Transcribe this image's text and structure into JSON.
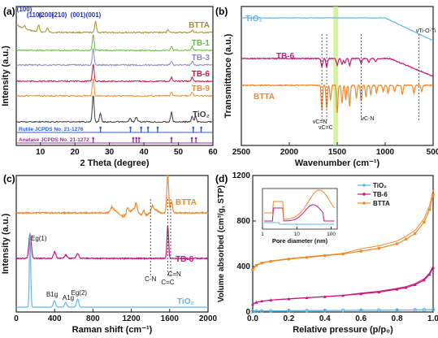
{
  "chart_data": [
    {
      "panel": "(a)",
      "type": "line",
      "xlabel": "2 Theta (degree)",
      "ylabel": "Intensity (a.u.)",
      "xlim": [
        3,
        60
      ],
      "xticks": [
        10,
        20,
        30,
        40,
        50,
        60
      ],
      "yticks": "none",
      "peak_labels": [
        {
          "text": "(100)",
          "x": 5.5
        },
        {
          "text": "(110)",
          "x": 9.0
        },
        {
          "text": "(200)",
          "x": 12.5
        },
        {
          "text": "(210)",
          "x": 16.5
        },
        {
          "text": "(001)",
          "x": 26.0
        }
      ],
      "series": [
        {
          "name": "BTTA",
          "color": "#a0922a",
          "offset": 6,
          "peaks": [
            [
              5.4,
              0.4
            ],
            [
              9.5,
              0.8
            ],
            [
              12,
              0.5
            ],
            [
              26,
              1.4
            ],
            [
              47,
              0.4
            ],
            [
              54,
              0.3
            ]
          ]
        },
        {
          "name": "TB-1",
          "color": "#5fbf3a",
          "offset": 5,
          "peaks": [
            [
              25.3,
              2.0
            ],
            [
              48,
              0.5
            ],
            [
              54,
              0.5
            ]
          ]
        },
        {
          "name": "TB-3",
          "color": "#8a86c8",
          "offset": 4,
          "peaks": [
            [
              25.3,
              2.1
            ],
            [
              48,
              0.5
            ],
            [
              54,
              0.5
            ]
          ]
        },
        {
          "name": "TB-6",
          "color": "#c8163c",
          "offset": 3,
          "peaks": [
            [
              25.3,
              2.2
            ],
            [
              48,
              0.5
            ],
            [
              54,
              0.5
            ]
          ]
        },
        {
          "name": "TB-9",
          "color": "#ef8a2c",
          "offset": 2,
          "peaks": [
            [
              25.3,
              2.2
            ],
            [
              48,
              0.5
            ],
            [
              54,
              0.5
            ]
          ]
        },
        {
          "name": "TiO2",
          "color": "#3a3a3a",
          "offset": 0,
          "peaks": [
            [
              25.3,
              3.4
            ],
            [
              27.4,
              1.1
            ],
            [
              36,
              0.5
            ],
            [
              37.8,
              0.6
            ],
            [
              48,
              1.2
            ],
            [
              54,
              0.7
            ],
            [
              55,
              0.7
            ]
          ]
        }
      ],
      "reference_bars": [
        {
          "name": "Rutile JCPDS No. 21-1276",
          "color": "#2a5fd0",
          "positions": [
            27.4,
            36.1,
            39.2,
            41.2,
            44.0,
            54.3,
            56.6
          ]
        },
        {
          "name": "Anatase JCPDS No. 21-1272",
          "color": "#9a2f9a",
          "positions": [
            25.3,
            36.9,
            37.8,
            38.6,
            48.0,
            53.9,
            55.1
          ]
        }
      ]
    },
    {
      "panel": "(b)",
      "type": "line",
      "xlabel": "Wavenumber (cm⁻¹)",
      "ylabel": "Transmittance (a.u.)",
      "xlim": [
        2500,
        500
      ],
      "xticks": [
        2500,
        2000,
        1500,
        1000,
        500
      ],
      "highlight_band": [
        1540,
        1490
      ],
      "series": [
        {
          "name": "TiO2",
          "color": "#5fb8e6"
        },
        {
          "name": "TB-6",
          "color": "#c8167c"
        },
        {
          "name": "BTTA",
          "color": "#ef8a2c"
        }
      ],
      "annotations": [
        {
          "text": "v C=N",
          "x": 1660
        },
        {
          "text": "v C=C",
          "x": 1610
        },
        {
          "text": "v C-N",
          "x": 1250
        },
        {
          "text": "v Ti-O-Ti",
          "x": 650
        }
      ]
    },
    {
      "panel": "(c)",
      "type": "line",
      "xlabel": "Raman shift (cm⁻¹)",
      "ylabel": "Intensity (a.u.)",
      "xlim": [
        0,
        2000
      ],
      "xticks": [
        0,
        400,
        800,
        1200,
        1600,
        2000
      ],
      "series": [
        {
          "name": "BTTA",
          "color": "#ef8a2c"
        },
        {
          "name": "TB-6",
          "color": "#c8167c"
        },
        {
          "name": "TiO2",
          "color": "#5fb8e6"
        }
      ],
      "annotations": [
        {
          "text": "E g(1)",
          "x": 144
        },
        {
          "text": "B 1g",
          "x": 398
        },
        {
          "text": "A 1g",
          "x": 516
        },
        {
          "text": "E g(2)",
          "x": 640
        },
        {
          "text": "C-N",
          "x": 1400
        },
        {
          "text": "C=C",
          "x": 1580
        },
        {
          "text": "C=N",
          "x": 1610
        }
      ]
    },
    {
      "panel": "(d)",
      "type": "line",
      "xlabel": "Relative pressure (p/p₀)",
      "ylabel": "Volume absorbed (cm³/g, STP)",
      "xlim": [
        0.0,
        1.0
      ],
      "ylim": [
        0,
        1200
      ],
      "xticks": [
        0.0,
        0.2,
        0.4,
        0.6,
        0.8,
        1.0
      ],
      "yticks": [
        0,
        400,
        800,
        1200
      ],
      "legend": "top-left",
      "series": [
        {
          "name": "TiO2",
          "color": "#5fb8e6",
          "marker": "circle",
          "x": [
            0.0,
            0.02,
            0.05,
            0.1,
            0.2,
            0.3,
            0.4,
            0.5,
            0.6,
            0.7,
            0.8,
            0.9,
            0.95,
            1.0
          ],
          "y": [
            5,
            8,
            9,
            10,
            11,
            12,
            13,
            14,
            15,
            16,
            17,
            18,
            19,
            20
          ]
        },
        {
          "name": "TB-6",
          "color": "#c8167c",
          "marker": "triangle",
          "x": [
            0.0,
            0.02,
            0.05,
            0.1,
            0.2,
            0.3,
            0.4,
            0.5,
            0.6,
            0.7,
            0.8,
            0.85,
            0.9,
            0.95,
            0.98,
            1.0
          ],
          "y": [
            70,
            85,
            95,
            105,
            115,
            125,
            135,
            145,
            160,
            175,
            200,
            215,
            240,
            280,
            330,
            390
          ]
        },
        {
          "name": "BTTA",
          "color": "#ef8a2c",
          "marker": "square",
          "x": [
            0.0,
            0.02,
            0.05,
            0.1,
            0.2,
            0.3,
            0.4,
            0.5,
            0.6,
            0.7,
            0.8,
            0.85,
            0.9,
            0.95,
            0.98,
            1.0
          ],
          "y": [
            370,
            410,
            430,
            445,
            465,
            480,
            495,
            510,
            535,
            560,
            600,
            640,
            690,
            790,
            900,
            1030
          ]
        }
      ],
      "inset": {
        "xlabel": "Pore diameter (nm)",
        "xscale": "log",
        "xticks": [
          1,
          10,
          100
        ],
        "series": [
          {
            "name": "TiO2",
            "color": "#5fb8e6"
          },
          {
            "name": "TB-6",
            "color": "#c8167c"
          },
          {
            "name": "BTTA",
            "color": "#ef8a2c"
          }
        ]
      }
    }
  ]
}
